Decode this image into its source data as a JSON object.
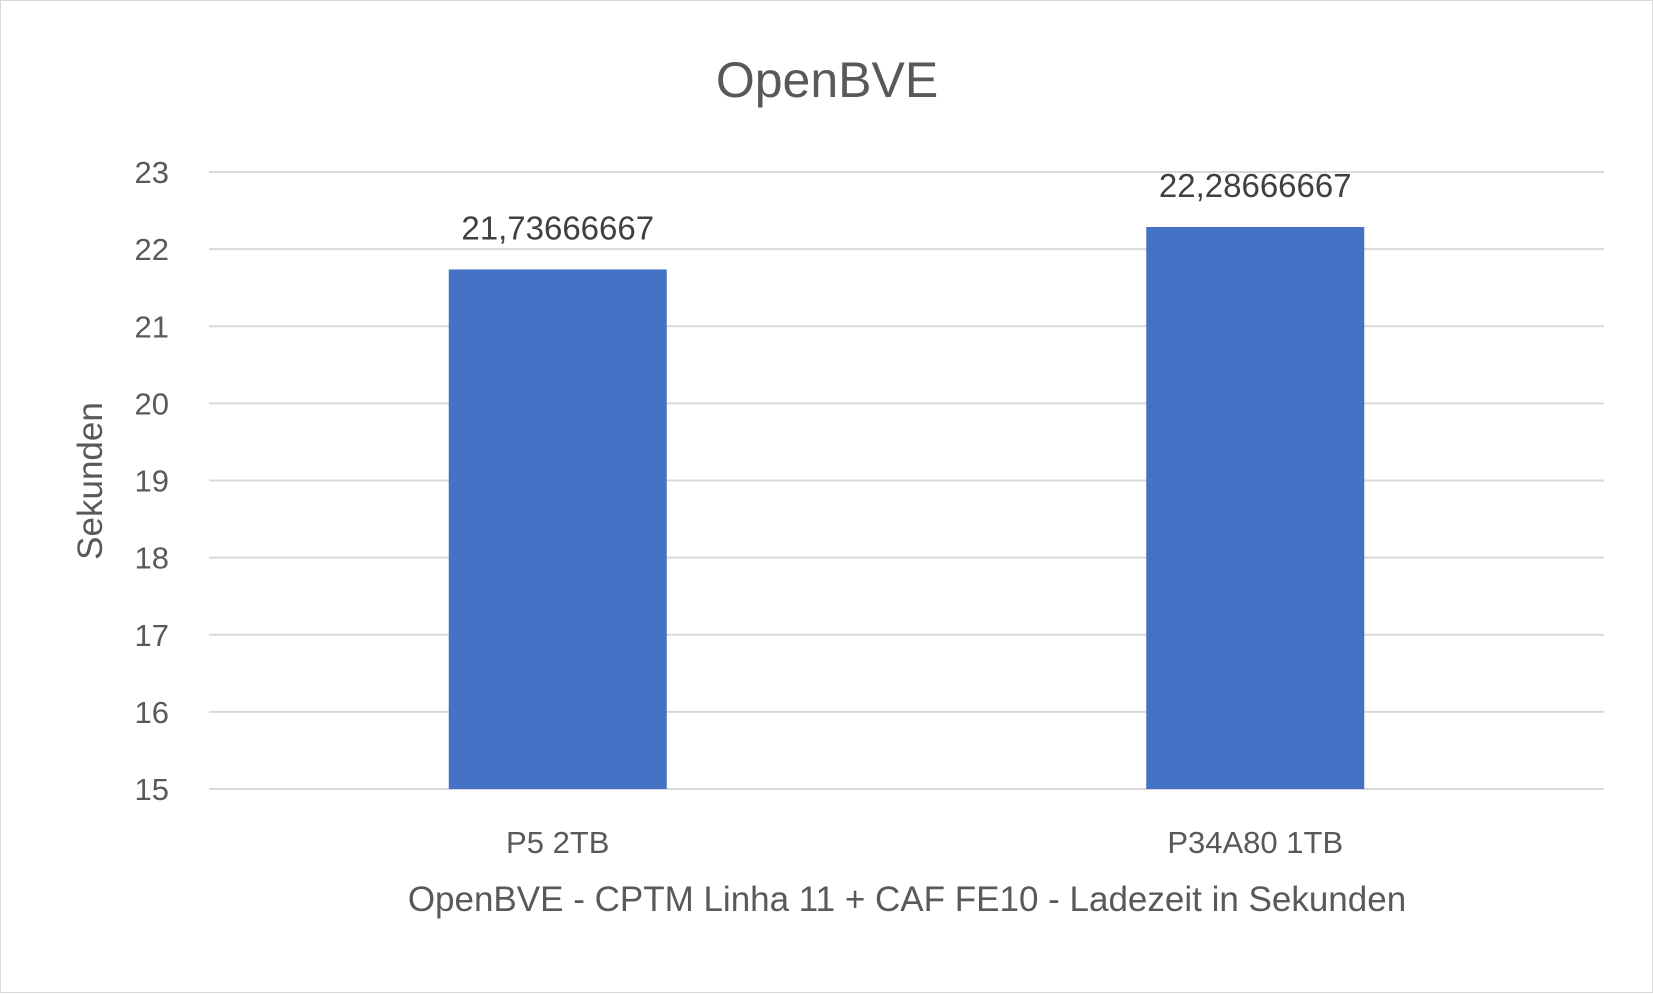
{
  "chart_data": {
    "type": "bar",
    "title": "OpenBVE",
    "xlabel": "OpenBVE - CPTM Linha 11 + CAF FE10 - Ladezeit in Sekunden",
    "ylabel": "Sekunden",
    "categories": [
      "P5 2TB",
      "P34A80 1TB"
    ],
    "values": [
      21.73666667,
      22.28666667
    ],
    "data_labels": [
      "21,73666667",
      "22,28666667"
    ],
    "ylim": [
      15,
      23
    ],
    "yticks": [
      15,
      16,
      17,
      18,
      19,
      20,
      21,
      22,
      23
    ],
    "grid": true,
    "legend": "none",
    "colors": {
      "bar": "#4472c4",
      "grid": "#d9d9d9",
      "text": "#595959",
      "label": "#404040"
    }
  }
}
